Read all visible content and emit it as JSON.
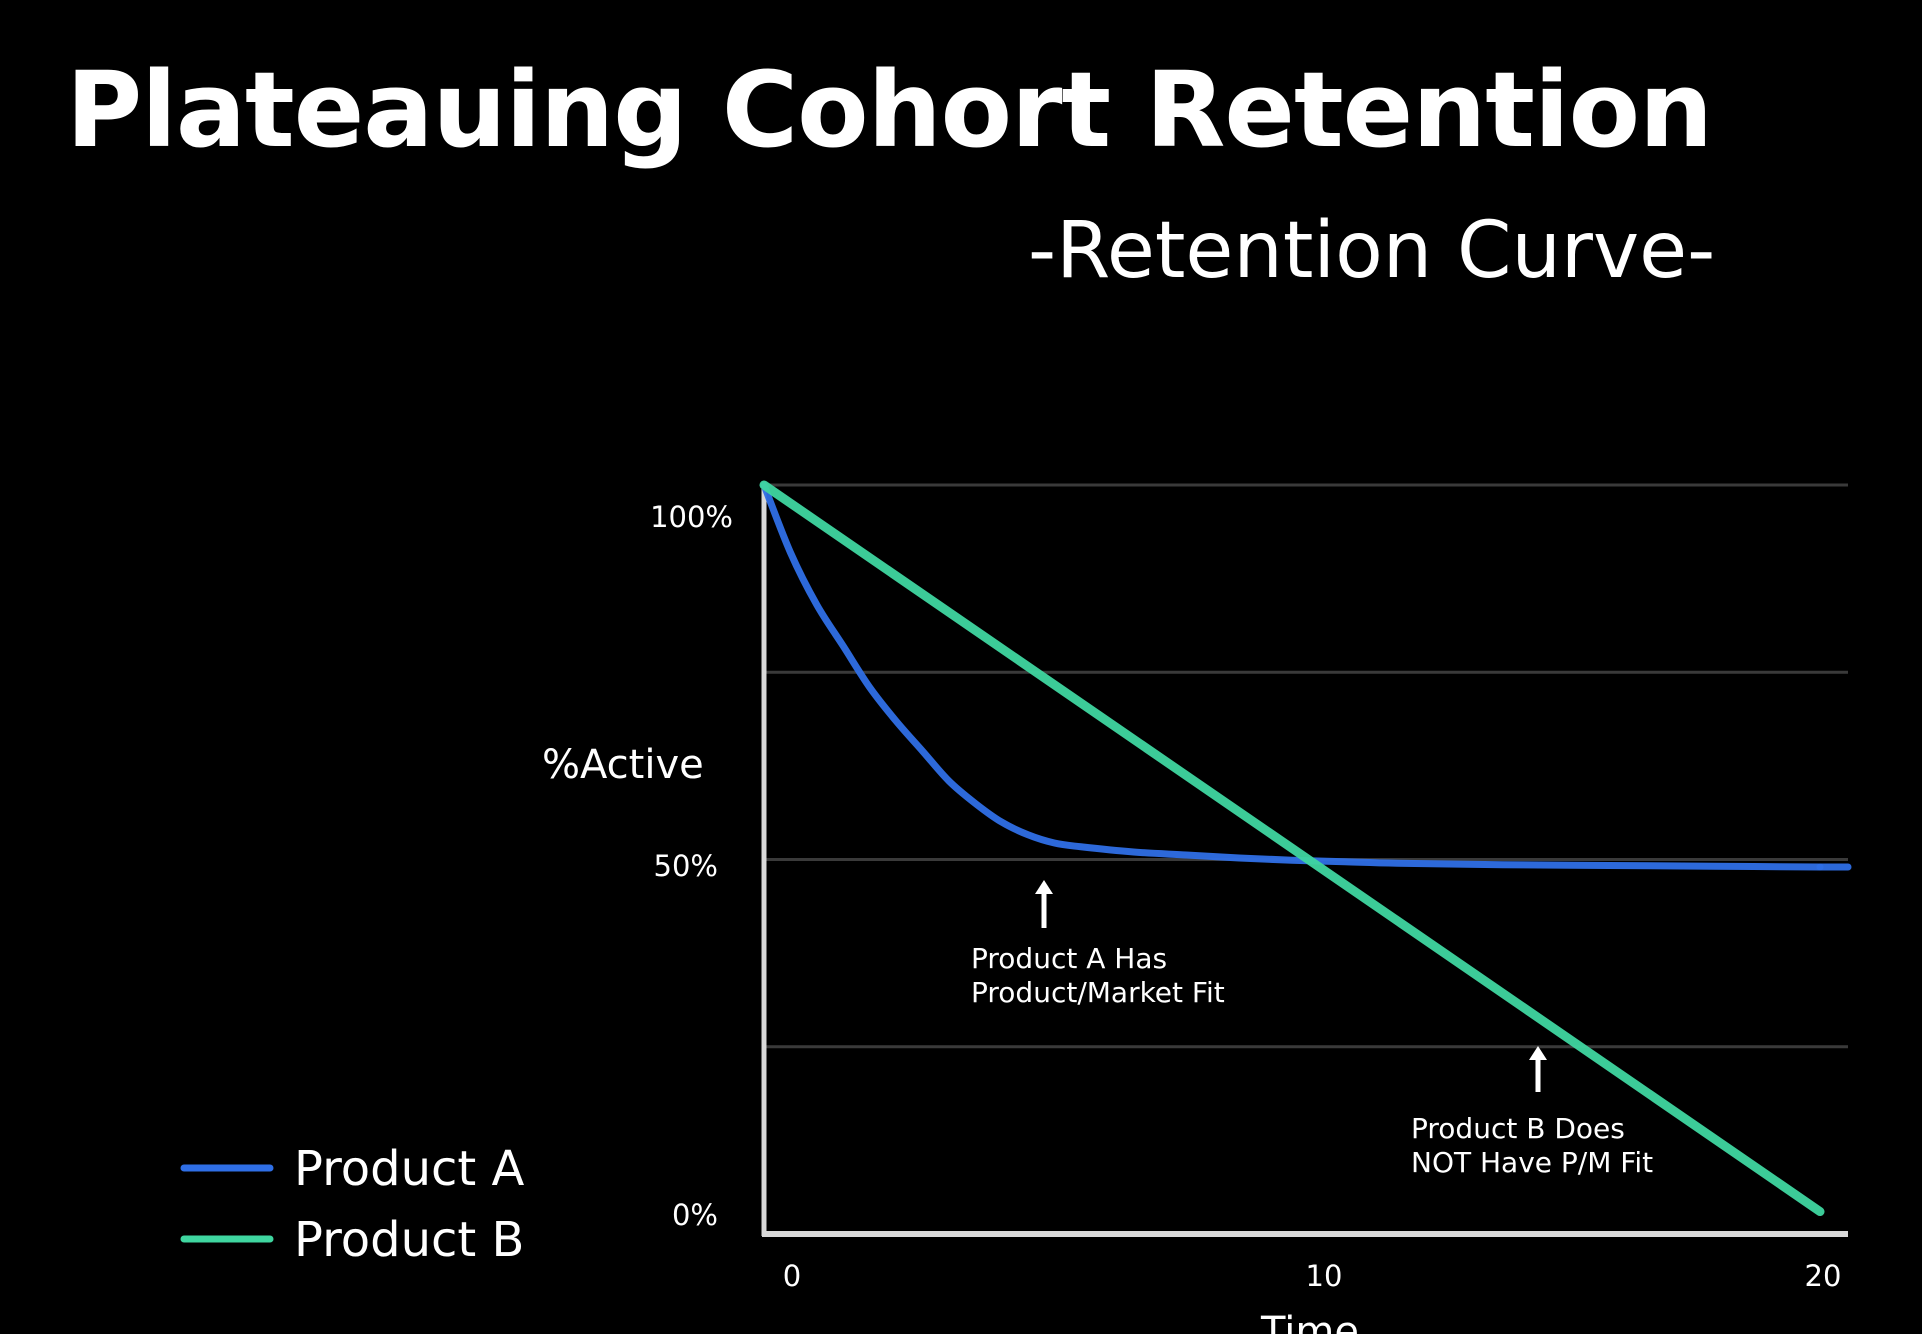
{
  "header": {
    "title": "Plateauing Cohort Retention",
    "subtitle": "-Retention Curve-"
  },
  "chart_data": {
    "type": "line",
    "title": "Plateauing Cohort Retention",
    "subtitle": "-Retention Curve-",
    "ylabel": "%Active",
    "xlabel": "Time",
    "xlim": [
      0,
      20
    ],
    "ylim": [
      0,
      100
    ],
    "x_ticks": [
      "0",
      "10",
      "20"
    ],
    "y_ticks": [
      {
        "label": "100%",
        "value": 100
      },
      {
        "label": "50%",
        "value": 50
      },
      {
        "label": "0%",
        "value": 0
      }
    ],
    "grid": true,
    "legend_position": "bottom-left",
    "series": [
      {
        "name": "Product A",
        "color": "#2f6fe6",
        "x": [
          0,
          0.5,
          1,
          1.5,
          2,
          2.5,
          3,
          3.5,
          4,
          4.5,
          5,
          5.5,
          6,
          7,
          8,
          9,
          10,
          11,
          12,
          14,
          16,
          18,
          20
        ],
        "y": [
          100,
          91,
          84,
          78.5,
          73,
          68.5,
          64.5,
          60.5,
          57.5,
          55,
          53.3,
          52.2,
          51.7,
          51,
          50.6,
          50.2,
          49.9,
          49.7,
          49.5,
          49.3,
          49.2,
          49.1,
          49
        ]
      },
      {
        "name": "Product B",
        "color": "#3fd6a0",
        "x": [
          0,
          20
        ],
        "y": [
          100,
          3
        ]
      }
    ],
    "annotations": [
      {
        "text": [
          "Product A Has",
          "Product/Market Fit"
        ],
        "x": 5.1,
        "y": 47
      },
      {
        "text": [
          "Product B Does",
          "NOT Have P/M Fit"
        ],
        "x": 14.3,
        "y": 24
      }
    ]
  }
}
